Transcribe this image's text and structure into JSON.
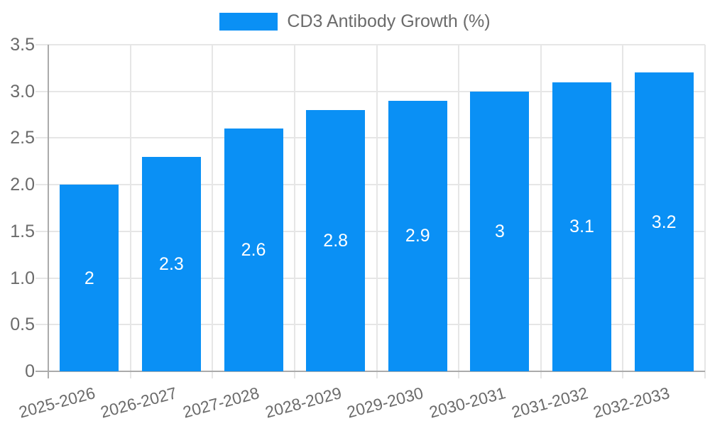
{
  "chart_data": {
    "type": "bar",
    "title": "CD3 Antibody Growth (%)",
    "xlabel": "",
    "ylabel": "",
    "legend": {
      "position": "top",
      "entries": [
        {
          "label": "CD3 Antibody Growth (%)",
          "color": "#0a90f5"
        }
      ]
    },
    "categories": [
      "2025-2026",
      "2026-2027",
      "2027-2028",
      "2028-2029",
      "2029-2030",
      "2030-2031",
      "2031-2032",
      "2032-2033"
    ],
    "series": [
      {
        "name": "CD3 Antibody Growth (%)",
        "values": [
          2,
          2.3,
          2.6,
          2.8,
          2.9,
          3,
          3.1,
          3.2
        ]
      }
    ],
    "data_labels": [
      "2",
      "2.3",
      "2.6",
      "2.8",
      "2.9",
      "3",
      "3.1",
      "3.2"
    ],
    "ylim": [
      0,
      3.5
    ],
    "yticks": [
      0,
      0.5,
      1,
      1.5,
      2,
      2.5,
      3,
      3.5
    ],
    "ytick_labels": [
      "0",
      "0.5",
      "1.0",
      "1.5",
      "2.0",
      "2.5",
      "3.0",
      "3.5"
    ],
    "grid": true,
    "x_label_rotation_deg": -15,
    "colors": {
      "bar": "#0a90f5",
      "grid": "#e6e6e6",
      "axis": "#ababab",
      "tick_text": "#6b6b6b",
      "legend_text": "#6b6b6b",
      "data_label_text": "#ffffff",
      "background": "#ffffff"
    }
  }
}
